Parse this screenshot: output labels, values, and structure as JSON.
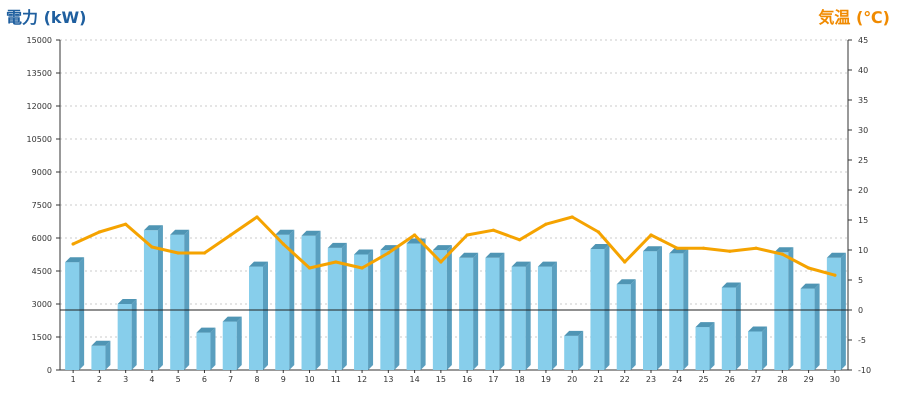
{
  "chart_data": {
    "type": "bar",
    "title_left": "電力 (kW)",
    "title_right": "気温 (℃)",
    "categories": [
      "1",
      "2",
      "3",
      "4",
      "5",
      "6",
      "7",
      "8",
      "9",
      "10",
      "11",
      "12",
      "13",
      "14",
      "15",
      "16",
      "17",
      "18",
      "19",
      "20",
      "21",
      "22",
      "23",
      "24",
      "25",
      "26",
      "27",
      "28",
      "29",
      "30"
    ],
    "series": [
      {
        "axis": "left",
        "type": "bar",
        "values": [
          4900,
          1100,
          3000,
          6350,
          6150,
          1700,
          2200,
          4700,
          6150,
          6100,
          5550,
          5250,
          5450,
          5750,
          5450,
          5100,
          5100,
          4700,
          4700,
          1550,
          5500,
          3900,
          5400,
          5300,
          1950,
          3750,
          1750,
          5350,
          3700,
          5100
        ]
      },
      {
        "axis": "right",
        "type": "line",
        "values": [
          11,
          13,
          14.3,
          10.5,
          9.5,
          9.5,
          12.5,
          15.5,
          11,
          7,
          8,
          7,
          9.5,
          12.5,
          8,
          12.5,
          13.3,
          11.7,
          14.3,
          15.5,
          13,
          8,
          12.5,
          10.3,
          10.3,
          9.8,
          10.3,
          9.3,
          7,
          5.8
        ]
      }
    ],
    "ylim_left": [
      0,
      15000
    ],
    "yticks_left": [
      "0",
      "1500",
      "3000",
      "4500",
      "6000",
      "7500",
      "9000",
      "10500",
      "12000",
      "13500",
      "15000"
    ],
    "ylim_right": [
      -10,
      45
    ],
    "yticks_right": [
      "-10",
      "-5",
      "0",
      "5",
      "10",
      "15",
      "20",
      "25",
      "30",
      "35",
      "40",
      "45"
    ],
    "reference_line_right": 0,
    "colors": {
      "bar_front": "#87ceeb",
      "bar_side": "#5a9fbf",
      "bar_top": "#4f95b4",
      "line": "#f5a300",
      "left_title": "#1f5f9f",
      "right_title": "#f08a00",
      "grid": "#bbbbbb"
    },
    "grid": true
  }
}
